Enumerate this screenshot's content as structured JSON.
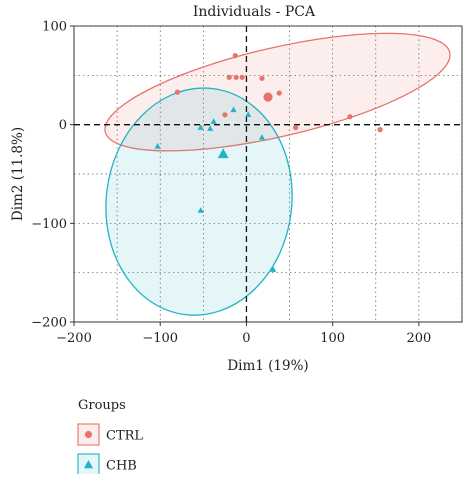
{
  "chart_data": {
    "type": "scatter",
    "title": "Individuals - PCA",
    "xlabel": "Dim1 (19%)",
    "ylabel": "Dim2 (11.8%)",
    "xlim": [
      -200,
      250
    ],
    "ylim": [
      -200,
      100
    ],
    "x_ticks": [
      -200,
      -100,
      0,
      100,
      200
    ],
    "x_tick_labels": [
      "−200",
      "−100",
      "0",
      "100",
      "200"
    ],
    "y_ticks": [
      100,
      0,
      -100,
      -200
    ],
    "y_tick_labels": [
      "100",
      "0",
      "−100",
      "−200"
    ],
    "grid": "dotted",
    "reference_lines": {
      "x": 0,
      "y": 0,
      "style": "dashed"
    },
    "legend": {
      "title": "Groups",
      "position": "bottom-left",
      "entries": [
        {
          "label": "CTRL",
          "marker": "circle",
          "color": "#E8736C"
        },
        {
          "label": "CHB",
          "marker": "triangle",
          "color": "#1FB3C4"
        }
      ]
    },
    "series": [
      {
        "name": "CTRL",
        "marker": "circle",
        "color": "#E8736C",
        "points": [
          {
            "x": -80,
            "y": 33
          },
          {
            "x": -25,
            "y": 10
          },
          {
            "x": -20,
            "y": 48
          },
          {
            "x": -13,
            "y": 70
          },
          {
            "x": -12,
            "y": 48
          },
          {
            "x": -5,
            "y": 48
          },
          {
            "x": 18,
            "y": 47
          },
          {
            "x": 25,
            "y": 30
          },
          {
            "x": 38,
            "y": 32
          },
          {
            "x": 57,
            "y": -3
          },
          {
            "x": 120,
            "y": 8
          },
          {
            "x": 155,
            "y": -5
          }
        ],
        "centroid": {
          "x": 25,
          "y": 28
        },
        "ellipse": {
          "cx": 36,
          "cy": 33,
          "rx": 205,
          "ry": 45,
          "rotation_deg": 13
        }
      },
      {
        "name": "CHB",
        "marker": "triangle",
        "color": "#1FB3C4",
        "points": [
          {
            "x": -103,
            "y": -22
          },
          {
            "x": -53,
            "y": -3
          },
          {
            "x": -38,
            "y": 3
          },
          {
            "x": -42,
            "y": -4
          },
          {
            "x": -53,
            "y": -87
          },
          {
            "x": -15,
            "y": 15
          },
          {
            "x": 2,
            "y": 10
          },
          {
            "x": 18,
            "y": -13
          },
          {
            "x": 31,
            "y": -147
          }
        ],
        "centroid": {
          "x": -27,
          "y": -30
        },
        "ellipse": {
          "cx": -55,
          "cy": -78,
          "rx": 132,
          "ry": 94,
          "rotation_deg": -97
        }
      }
    ]
  }
}
